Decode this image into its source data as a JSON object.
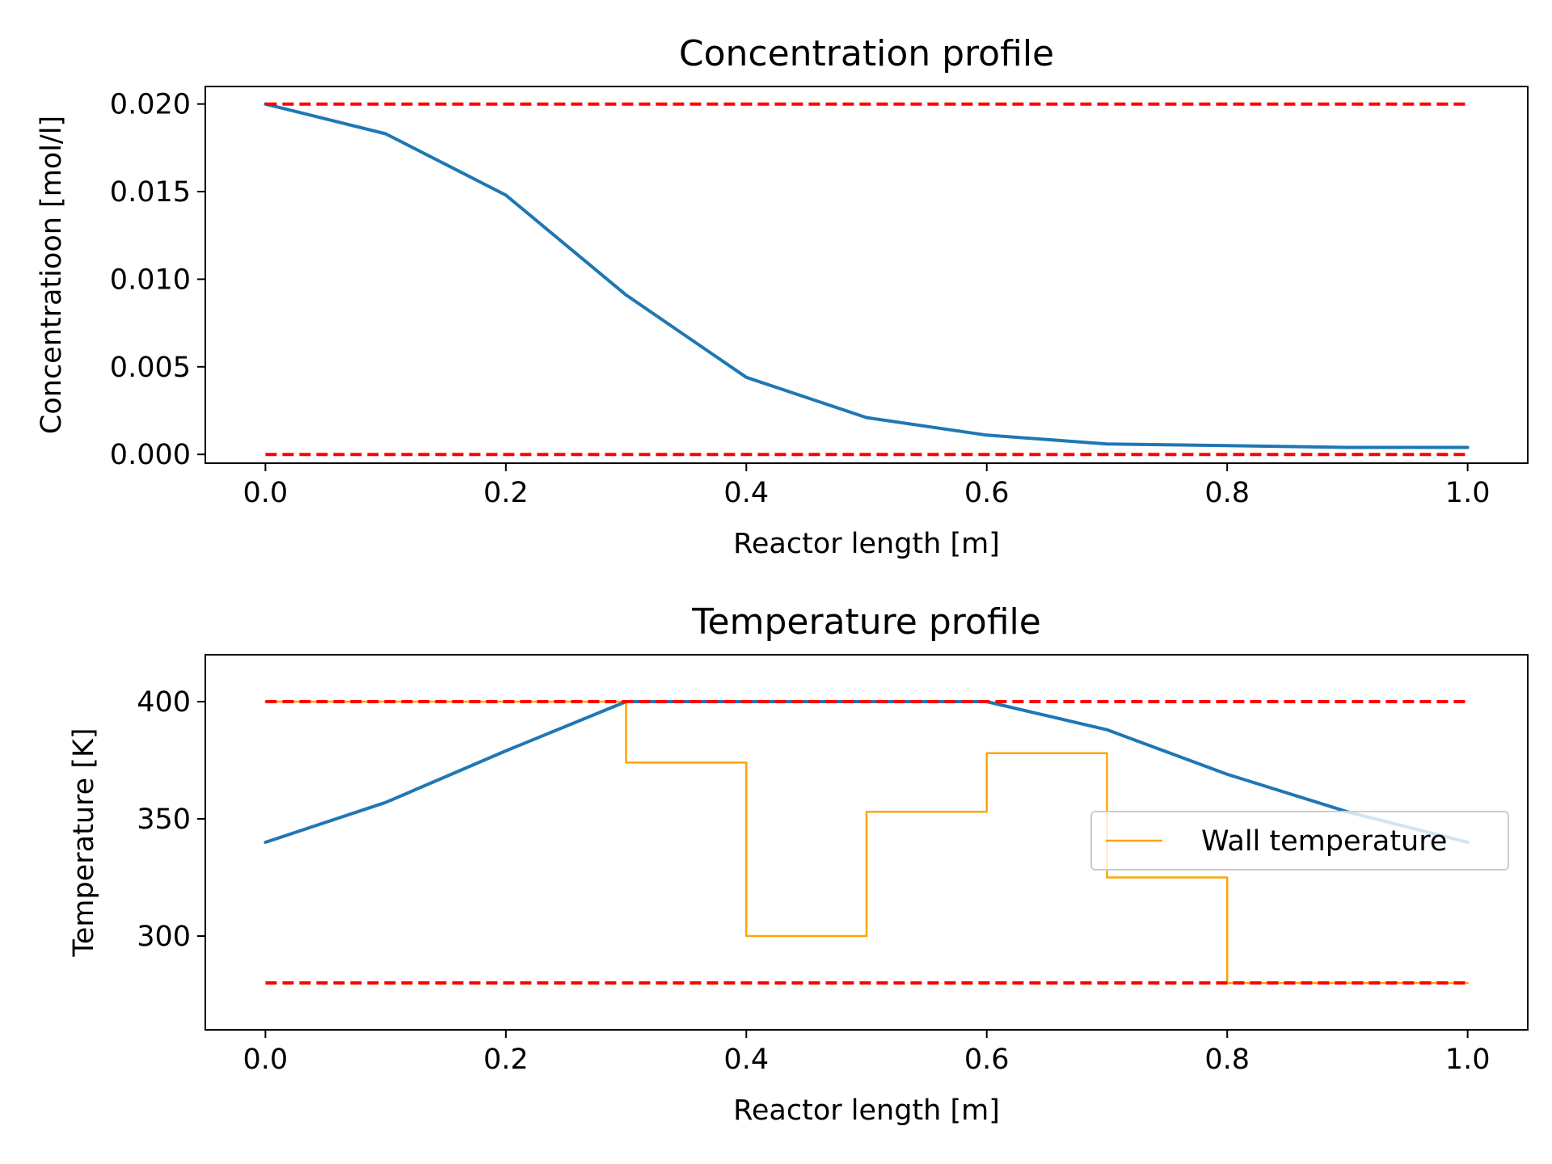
{
  "chart_data": [
    {
      "type": "line",
      "title": "Concentration profile",
      "xlabel": "Reactor length [m]",
      "ylabel": "Concentratioon [mol/l]",
      "xlim": [
        -0.05,
        1.05
      ],
      "ylim": [
        -0.0005,
        0.021
      ],
      "xticks": [
        0.0,
        0.2,
        0.4,
        0.6,
        0.8,
        1.0
      ],
      "xtick_labels": [
        "0.0",
        "0.2",
        "0.4",
        "0.6",
        "0.8",
        "1.0"
      ],
      "yticks": [
        0.0,
        0.005,
        0.01,
        0.015,
        0.02
      ],
      "ytick_labels": [
        "0.000",
        "0.005",
        "0.010",
        "0.015",
        "0.020"
      ],
      "grid": false,
      "series": [
        {
          "style": "solid",
          "color": "#1f77b4",
          "x": [
            0.0,
            0.1,
            0.2,
            0.3,
            0.4,
            0.5,
            0.6,
            0.7,
            0.8,
            0.9,
            1.0
          ],
          "values": [
            0.02,
            0.0183,
            0.0148,
            0.0091,
            0.0044,
            0.0021,
            0.0011,
            0.0006,
            0.0005,
            0.0004,
            0.0004
          ]
        },
        {
          "style": "dashed",
          "color": "#ff0000",
          "x": [
            0.0,
            1.0
          ],
          "values": [
            0.02,
            0.02
          ]
        },
        {
          "style": "dashed",
          "color": "#ff0000",
          "x": [
            0.0,
            1.0
          ],
          "values": [
            0.0,
            0.0
          ]
        }
      ]
    },
    {
      "type": "line",
      "title": "Temperature profile",
      "xlabel": "Reactor length [m]",
      "ylabel": "Temperature [K]",
      "xlim": [
        -0.05,
        1.05
      ],
      "ylim": [
        260,
        420
      ],
      "xticks": [
        0.0,
        0.2,
        0.4,
        0.6,
        0.8,
        1.0
      ],
      "xtick_labels": [
        "0.0",
        "0.2",
        "0.4",
        "0.6",
        "0.8",
        "1.0"
      ],
      "yticks": [
        300,
        350,
        400
      ],
      "ytick_labels": [
        "300",
        "350",
        "400"
      ],
      "grid": false,
      "legend_position": "right",
      "series": [
        {
          "style": "step",
          "name": "Wall temperature",
          "color": "#ffa500",
          "x": [
            0.0,
            0.1,
            0.2,
            0.3,
            0.4,
            0.5,
            0.6,
            0.7,
            0.8,
            0.9,
            1.0
          ],
          "values": [
            400,
            400,
            400,
            374,
            300,
            353,
            378,
            325,
            280,
            280,
            280
          ]
        },
        {
          "style": "solid",
          "color": "#1f77b4",
          "x": [
            0.0,
            0.1,
            0.2,
            0.3,
            0.4,
            0.5,
            0.6,
            0.7,
            0.8,
            0.9,
            1.0
          ],
          "values": [
            340,
            357,
            379,
            400,
            400,
            400,
            400,
            388,
            369,
            353,
            340
          ]
        },
        {
          "style": "dashed",
          "color": "#ff0000",
          "x": [
            0.0,
            1.0
          ],
          "values": [
            400,
            400
          ]
        },
        {
          "style": "dashed",
          "color": "#ff0000",
          "x": [
            0.0,
            1.0
          ],
          "values": [
            280,
            280
          ]
        }
      ]
    }
  ]
}
